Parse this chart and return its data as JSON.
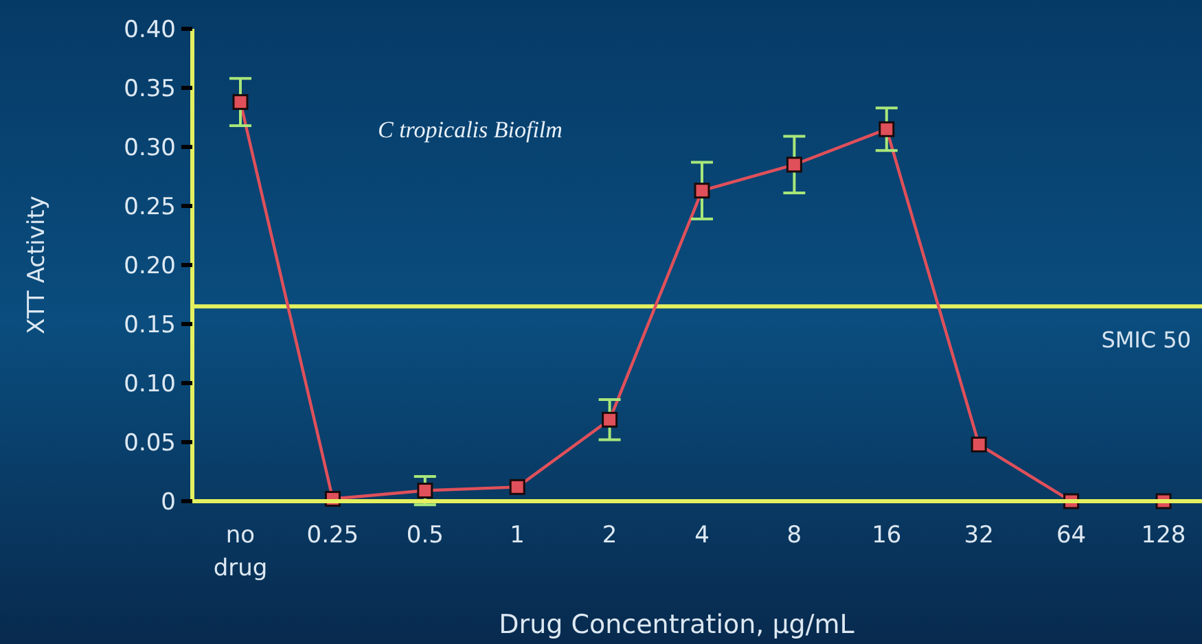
{
  "chart_data": {
    "type": "line",
    "title": "C tropicalis Biofilm",
    "xlabel": "Drug Concentration, µg/mL",
    "ylabel": "XTT Activity",
    "categories": [
      "no drug",
      "0.25",
      "0.5",
      "1",
      "2",
      "4",
      "8",
      "16",
      "32",
      "64",
      "128"
    ],
    "series": [
      {
        "color": "#e0505a",
        "values": [
          0.338,
          0.002,
          0.009,
          0.012,
          0.069,
          0.263,
          0.285,
          0.315,
          0.048,
          0,
          0
        ],
        "errors": [
          0.02,
          null,
          0.012,
          null,
          0.017,
          0.024,
          0.024,
          0.018,
          null,
          null,
          null
        ]
      }
    ],
    "ylim": [
      0,
      0.4
    ],
    "yticks": [
      {
        "value": 0,
        "label": "0"
      },
      {
        "value": 0.05,
        "label": "0.05"
      },
      {
        "value": 0.1,
        "label": "0.10"
      },
      {
        "value": 0.15,
        "label": "0.15"
      },
      {
        "value": 0.2,
        "label": "0.20"
      },
      {
        "value": 0.25,
        "label": "0.25"
      },
      {
        "value": 0.3,
        "label": "0.30"
      },
      {
        "value": 0.35,
        "label": "0.35"
      },
      {
        "value": 0.4,
        "label": "0.40"
      }
    ],
    "ref_lines": [
      {
        "axis": "y",
        "value": 0.165,
        "label": "SMIC 50",
        "color": "#e4f060"
      }
    ],
    "grid": false,
    "marker": "square",
    "line_style": "solid"
  }
}
